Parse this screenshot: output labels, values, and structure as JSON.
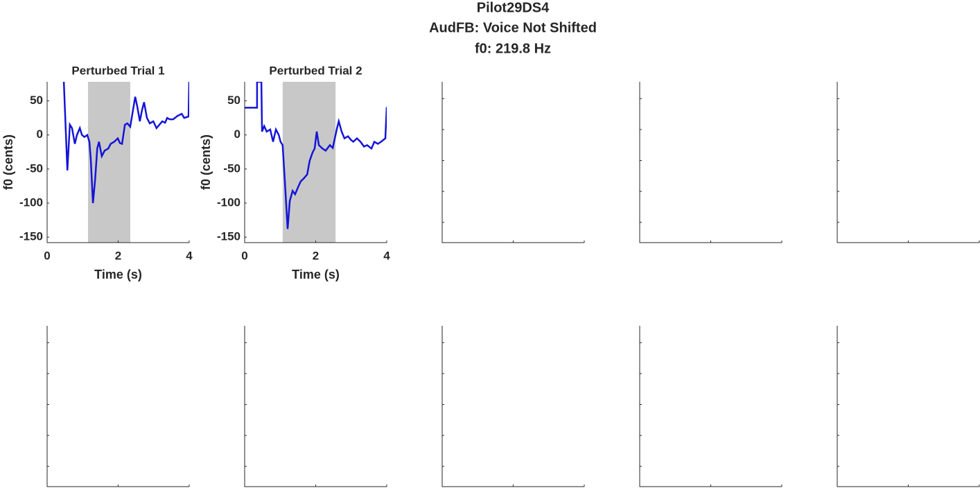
{
  "suptitle": [
    "Pilot29DS4",
    "AudFB: Voice Not Shifted",
    "f0: 219.8 Hz"
  ],
  "chart_data": [
    {
      "type": "line",
      "title": "Perturbed Trial 1",
      "xlabel": "Time (s)",
      "ylabel": "f0 (cents)",
      "xlim": [
        0,
        4
      ],
      "xticks": [
        0,
        2,
        4
      ],
      "ylim": [
        -158,
        78
      ],
      "yticks": [
        -150,
        -100,
        -50,
        0,
        50
      ],
      "shade": [
        1.15,
        2.34
      ],
      "shade_color": "#c8c8c8",
      "series": [
        {
          "color": "#1414d8",
          "x": [
            0.47,
            0.57,
            0.64,
            0.7,
            0.78,
            0.84,
            0.92,
            0.98,
            1.05,
            1.13,
            1.19,
            1.23,
            1.29,
            1.35,
            1.41,
            1.46,
            1.54,
            1.62,
            1.72,
            1.79,
            1.89,
            1.99,
            2.05,
            2.11,
            2.19,
            2.26,
            2.34,
            2.4,
            2.48,
            2.54,
            2.61,
            2.67,
            2.73,
            2.81,
            2.89,
            2.99,
            3.08,
            3.16,
            3.24,
            3.32,
            3.38,
            3.45,
            3.55,
            3.67,
            3.79,
            3.86,
            3.98,
            4.0
          ],
          "values": [
            78,
            -52,
            15,
            10,
            -13,
            0,
            10,
            0,
            -3,
            0,
            -10,
            -36,
            -100,
            -66,
            -20,
            -10,
            -31,
            -23,
            -20,
            -13,
            -10,
            -5,
            -12,
            -13,
            15,
            17,
            12,
            31,
            56,
            41,
            20,
            36,
            48,
            25,
            17,
            20,
            10,
            15,
            20,
            18,
            25,
            23,
            23,
            28,
            31,
            25,
            27,
            78
          ]
        }
      ]
    },
    {
      "type": "line",
      "title": "Perturbed Trial 2",
      "xlabel": "Time (s)",
      "ylabel": "f0 (cents)",
      "xlim": [
        0,
        4
      ],
      "xticks": [
        0,
        2,
        4
      ],
      "ylim": [
        -158,
        78
      ],
      "yticks": [
        -150,
        -100,
        -50,
        0,
        50
      ],
      "shade": [
        1.07,
        2.56
      ],
      "shade_color": "#c8c8c8",
      "series": [
        {
          "color": "#1414d8",
          "x": [
            0,
            0.35,
            0.35,
            0.47,
            0.49,
            0.55,
            0.62,
            0.72,
            0.8,
            0.88,
            0.96,
            1.01,
            1.07,
            1.13,
            1.21,
            1.27,
            1.35,
            1.42,
            1.5,
            1.58,
            1.66,
            1.76,
            1.83,
            1.91,
            1.97,
            2.03,
            2.09,
            2.19,
            2.28,
            2.4,
            2.48,
            2.6,
            2.65,
            2.73,
            2.81,
            2.91,
            2.99,
            3.06,
            3.16,
            3.26,
            3.36,
            3.45,
            3.57,
            3.65,
            3.75,
            3.84,
            3.96,
            4.0
          ],
          "values": [
            40,
            40,
            78,
            78,
            5,
            13,
            5,
            8,
            -10,
            8,
            0,
            -10,
            -15,
            -66,
            -138,
            -97,
            -82,
            -87,
            -77,
            -68,
            -64,
            -58,
            -38,
            -26,
            -20,
            5,
            -15,
            -20,
            -23,
            -15,
            -19,
            10,
            20,
            5,
            -5,
            -2,
            -7,
            -10,
            -5,
            -10,
            -17,
            -15,
            -20,
            -10,
            -13,
            -10,
            -5,
            41
          ]
        }
      ]
    }
  ]
}
